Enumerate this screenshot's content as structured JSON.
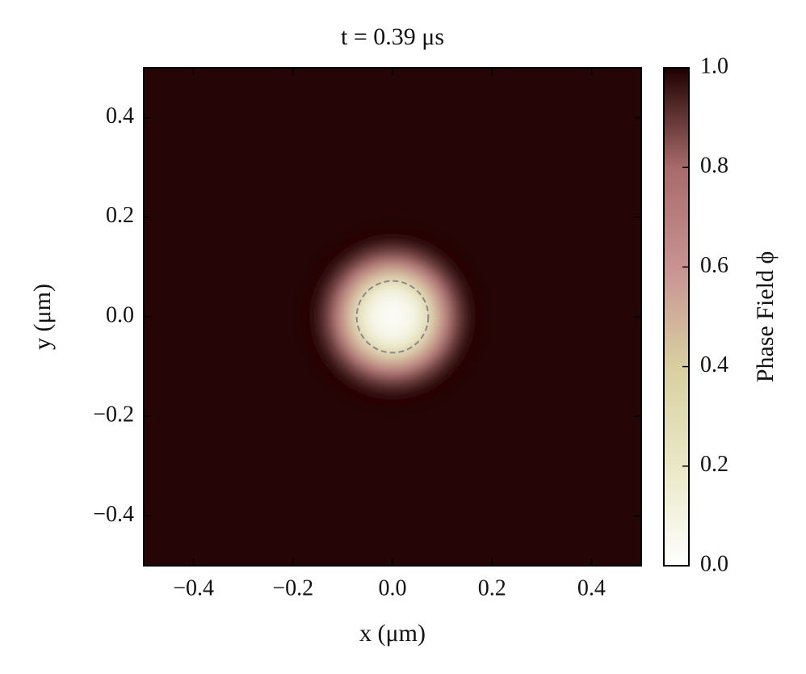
{
  "chart_data": {
    "type": "radial_heatmap",
    "title": "t = 0.39 μs",
    "x_label": "x (μm)",
    "y_label": "y (μm)",
    "colorbar_label": "Phase Field ϕ",
    "xlim": [
      -0.5,
      0.5
    ],
    "ylim": [
      -0.5,
      0.5
    ],
    "xticks": [
      {
        "value": -0.4,
        "label": "−0.4"
      },
      {
        "value": -0.2,
        "label": "−0.2"
      },
      {
        "value": 0,
        "label": "0.0"
      },
      0.2,
      0.4
    ],
    "yticks": [
      {
        "value": -0.4,
        "label": "−0.4"
      },
      {
        "value": -0.2,
        "label": "−0.2"
      },
      {
        "value": 0,
        "label": "0.0"
      },
      0.2,
      0.4
    ],
    "clim": [
      0,
      1
    ],
    "cticks": [
      {
        "value": 0,
        "label": "0.0"
      },
      0.2,
      0.4,
      0.6,
      0.8,
      {
        "value": 1,
        "label": "1.0"
      }
    ],
    "colormap": [
      "#ffffff",
      "#e9e8c6",
      "#d9cfa2",
      "#c89292",
      "#a86a6a",
      "#1e0000"
    ],
    "radius": [
      0,
      0.02,
      0.04,
      0.06,
      0.08,
      0.1,
      0.12,
      0.14,
      0.16,
      0.18
    ],
    "values": [
      0.02,
      0.03,
      0.06,
      0.12,
      0.28,
      0.5,
      0.72,
      0.88,
      0.96,
      0.99
    ],
    "contour_radius": 0.072
  }
}
